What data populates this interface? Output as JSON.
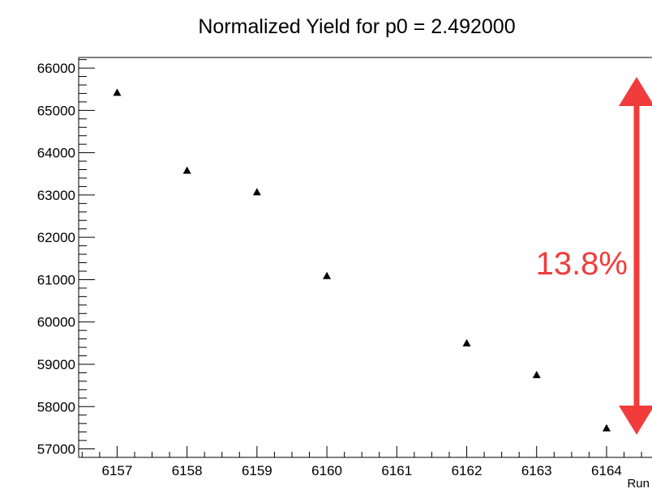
{
  "chart_data": {
    "type": "scatter",
    "title": "Normalized Yield for p0 = 2.492000",
    "xlabel": "Run",
    "ylabel": "",
    "x_ticks": [
      "6157",
      "6158",
      "6159",
      "6160",
      "6161",
      "6162",
      "6163",
      "6164"
    ],
    "y_ticks": [
      "57000",
      "58000",
      "59000",
      "60000",
      "61000",
      "62000",
      "63000",
      "64000",
      "65000",
      "66000"
    ],
    "xlim": [
      6156.45,
      6164.65
    ],
    "ylim": [
      56800,
      66250
    ],
    "marker": "triangle-up",
    "grid": false,
    "series": [
      {
        "points": [
          {
            "x": 6157,
            "y": 65420
          },
          {
            "x": 6158,
            "y": 63580
          },
          {
            "x": 6159,
            "y": 63070
          },
          {
            "x": 6160,
            "y": 61090
          },
          {
            "x": 6162,
            "y": 59500
          },
          {
            "x": 6163,
            "y": 58750
          },
          {
            "x": 6164,
            "y": 57490
          }
        ]
      }
    ],
    "annotations": [
      {
        "text": "13.8%",
        "kind": "double-arrow",
        "y_from": 57200,
        "y_to": 65700,
        "color": "#f23c3c"
      }
    ]
  }
}
